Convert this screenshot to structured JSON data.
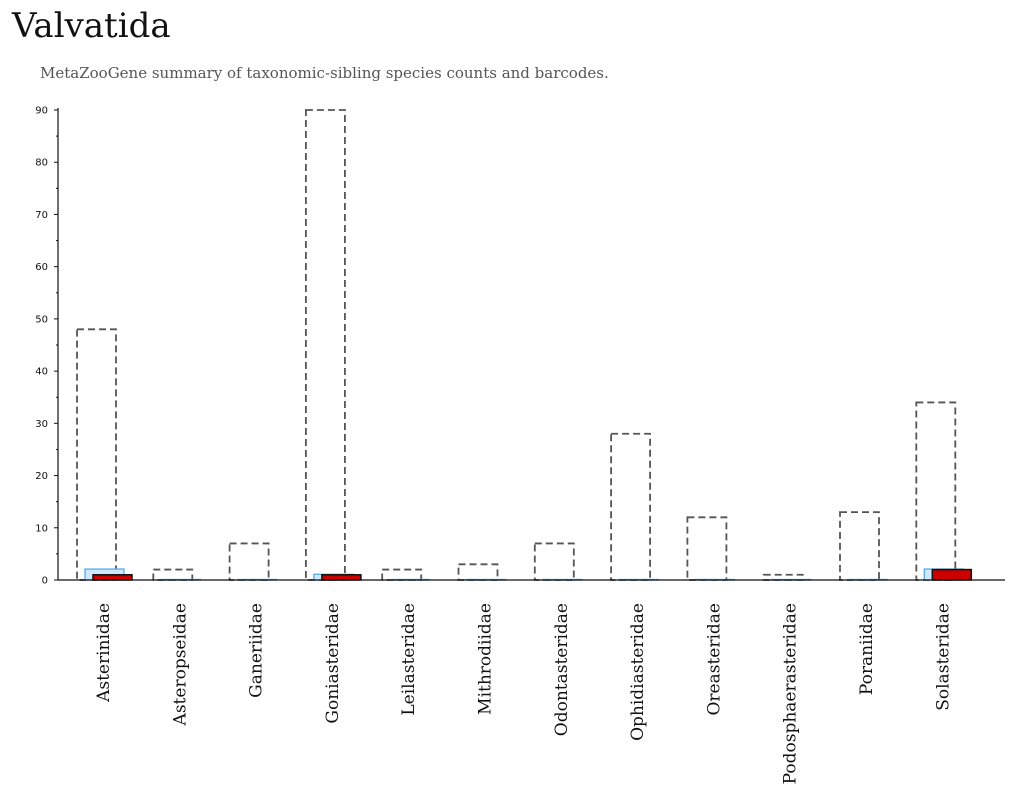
{
  "header": {
    "title": "Valvatida",
    "subtitle": "MetaZooGene summary of taxonomic-sibling species counts and barcodes."
  },
  "chart_data": {
    "type": "bar",
    "title": "Valvatida",
    "subtitle": "MetaZooGene summary of taxonomic-sibling species counts and barcodes.",
    "categories": [
      "Asterinidae",
      "Asteropseidae",
      "Ganeriidae",
      "Goniasteridae",
      "Leilasteridae",
      "Mithrodiidae",
      "Odontasteridae",
      "Ophidiasteridae",
      "Oreasteridae",
      "Podosphaerasteridae",
      "Poraniidae",
      "Solasteridae"
    ],
    "series": [
      {
        "style": "dashed-outline",
        "values": [
          48,
          2,
          7,
          90,
          2,
          3,
          7,
          28,
          12,
          1,
          13,
          34
        ]
      },
      {
        "style": "light-blue",
        "values": [
          2,
          0,
          0,
          1,
          0,
          0,
          0,
          0,
          0,
          0,
          0,
          2
        ]
      },
      {
        "style": "red",
        "values": [
          1,
          0,
          0,
          1,
          0,
          0,
          0,
          0,
          0,
          0,
          0,
          2
        ]
      }
    ],
    "yticks": [
      0,
      10,
      20,
      30,
      40,
      50,
      60,
      70,
      80,
      90
    ],
    "ylim": [
      0,
      90
    ],
    "xlabel": "",
    "ylabel": "",
    "grid": false,
    "colors": {
      "outline": "#555555",
      "light_fill": "#cfe8ff",
      "light_stroke": "#5aa9e6",
      "red_fill": "#cc0000",
      "red_stroke": "#111111",
      "axis": "#111111"
    }
  }
}
